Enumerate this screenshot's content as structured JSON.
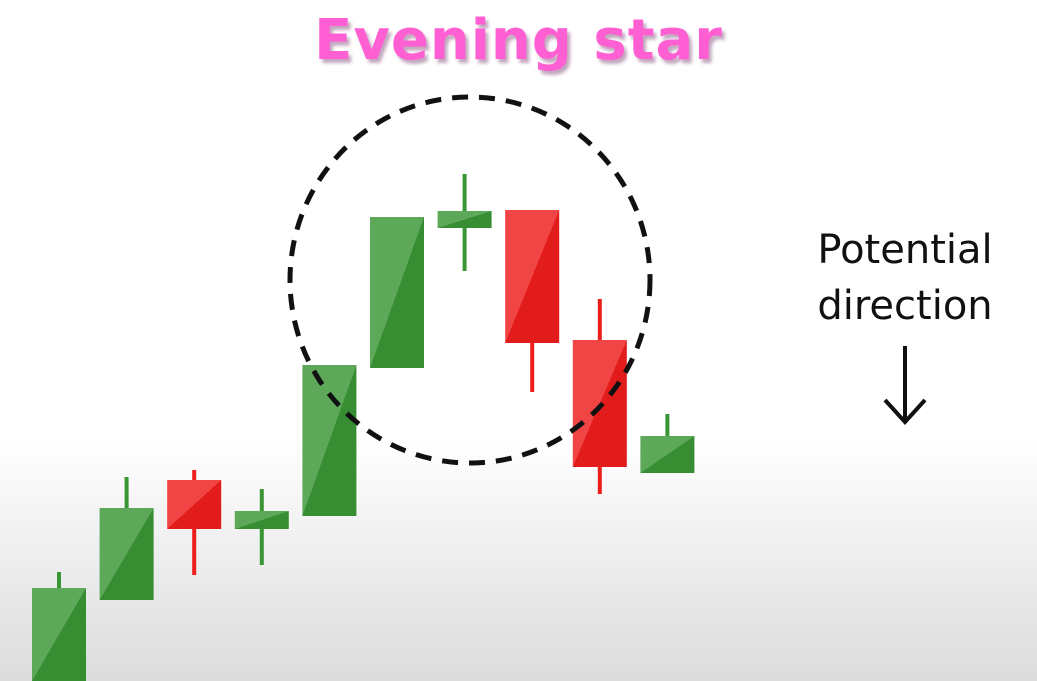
{
  "title": "Evening star",
  "annotation": {
    "line1": "Potential",
    "line2": "direction",
    "arrow_icon": "down-arrow-icon"
  },
  "colors": {
    "bullish": "#3a9635",
    "bearish": "#ee1c1c",
    "title": "#ff5fd2",
    "highlight_circle": "#111111"
  },
  "chart_data": {
    "type": "candlestick",
    "candles": [
      {
        "open": 0,
        "close": 93,
        "high": 109,
        "low": 0,
        "direction": "up"
      },
      {
        "open": 81,
        "close": 173,
        "high": 204,
        "low": 81,
        "direction": "up"
      },
      {
        "open": 201,
        "close": 152,
        "high": 211,
        "low": 106,
        "direction": "down"
      },
      {
        "open": 152,
        "close": 170,
        "high": 192,
        "low": 116,
        "direction": "up"
      },
      {
        "open": 165,
        "close": 316,
        "high": 316,
        "low": 165,
        "direction": "up"
      },
      {
        "open": 313,
        "close": 464,
        "high": 464,
        "low": 313,
        "direction": "up"
      },
      {
        "open": 453,
        "close": 470,
        "high": 507,
        "low": 410,
        "direction": "up"
      },
      {
        "open": 471,
        "close": 338,
        "high": 471,
        "low": 289,
        "direction": "down"
      },
      {
        "open": 341,
        "close": 214,
        "high": 382,
        "low": 187,
        "direction": "down"
      },
      {
        "open": 208,
        "close": 245,
        "high": 267,
        "low": 208,
        "direction": "up"
      }
    ],
    "highlighted": [
      5,
      6,
      7
    ],
    "pattern": "Evening star",
    "direction": "down"
  }
}
